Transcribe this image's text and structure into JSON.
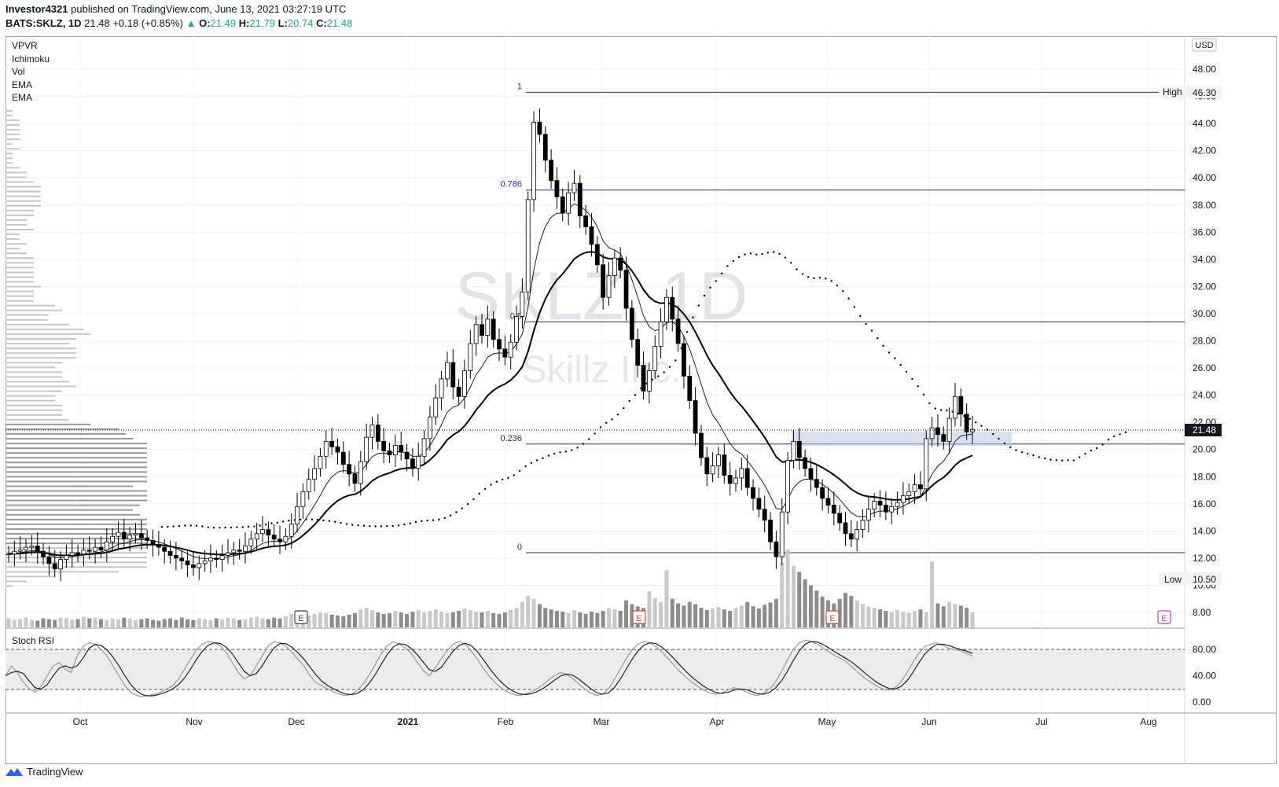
{
  "header": {
    "author": "Investor4321",
    "published": "published on TradingView.com, June 13, 2021 03:27:19 UTC",
    "symbol": "BATS:SKLZ, 1D",
    "last": "21.48",
    "change": "+0.18 (+0.85%)",
    "open_label": "O:",
    "open": "21.49",
    "high_label": "H:",
    "high": "21.79",
    "low_label": "L:",
    "low": "20.74",
    "close_label": "C:",
    "close": "21.48"
  },
  "watermark": {
    "symbol": "SKLZ, 1D",
    "name": "Skillz Inc."
  },
  "indicators": [
    "VPVR",
    "Ichimoku",
    "Vol",
    "EMA",
    "EMA"
  ],
  "stoch_label": "Stoch RSI",
  "footer": {
    "brand": "TradingView"
  },
  "colors": {
    "up": "#26a69a",
    "candle": "#000000",
    "fib": "#2a2e8c",
    "zone": "#b8c8e8",
    "earnings": "#e8453c",
    "dividend": "#c040c0"
  },
  "chart_data": {
    "type": "candlestick",
    "currency": "USD",
    "x_ticks": [
      "Oct",
      "Nov",
      "Dec",
      "2021",
      "Feb",
      "Mar",
      "Apr",
      "May",
      "Jun",
      "Jul",
      "Aug"
    ],
    "price_ticks": [
      "48.00",
      "46.00",
      "44.00",
      "42.00",
      "40.00",
      "38.00",
      "36.00",
      "34.00",
      "32.00",
      "30.00",
      "28.00",
      "26.00",
      "24.00",
      "22.00",
      "20.00",
      "18.00",
      "16.00",
      "14.00",
      "12.00",
      "10.00",
      "8.00"
    ],
    "stoch_ticks": [
      "80.00",
      "40.00",
      "0.00"
    ],
    "ylim": [
      7,
      51
    ],
    "fib_levels": [
      {
        "label": "1",
        "value": 46.3
      },
      {
        "label": "0.786",
        "value": 39.1
      },
      {
        "label": "0.5",
        "value": 29.4
      },
      {
        "label": "0.236",
        "value": 20.4
      },
      {
        "label": "0",
        "value": 12.4
      }
    ],
    "markers": {
      "high_label": "High",
      "high": "46.30",
      "low_label": "Low",
      "low": "10.50",
      "last": "21.48"
    },
    "events": {
      "earnings": "E"
    },
    "close_series": [
      12.3,
      12.5,
      12.6,
      12.8,
      12.9,
      12.5,
      12.1,
      11.6,
      11.2,
      11.9,
      12.2,
      12.4,
      12.3,
      12.6,
      12.5,
      12.8,
      12.6,
      13.2,
      13.6,
      13.9,
      13.4,
      13.7,
      13.8,
      13.5,
      13.3,
      13.0,
      12.8,
      12.5,
      12.2,
      12.0,
      11.8,
      11.5,
      11.3,
      11.6,
      11.8,
      12.0,
      11.9,
      12.2,
      12.4,
      12.6,
      12.5,
      12.9,
      13.4,
      13.8,
      14.1,
      13.7,
      13.4,
      13.2,
      13.6,
      14.5,
      15.8,
      16.9,
      17.8,
      18.6,
      19.5,
      20.6,
      20.2,
      19.8,
      18.9,
      18.2,
      17.5,
      19.1,
      20.9,
      21.8,
      20.6,
      19.9,
      19.6,
      20.3,
      19.8,
      19.3,
      18.6,
      19.5,
      20.8,
      22.4,
      23.8,
      25.2,
      26.4,
      24.6,
      23.9,
      25.8,
      27.8,
      29.2,
      28.4,
      29.6,
      28.1,
      27.4,
      26.8,
      27.9,
      29.8,
      31.6,
      38.4,
      44.1,
      43.2,
      41.3,
      39.8,
      38.6,
      37.4,
      38.9,
      39.6,
      37.2,
      36.4,
      35.1,
      33.6,
      31.2,
      32.8,
      34.1,
      33.2,
      30.4,
      28.1,
      26.2,
      24.3,
      25.8,
      27.6,
      29.4,
      31.2,
      29.6,
      27.8,
      25.4,
      23.6,
      21.2,
      19.4,
      18.2,
      18.8,
      19.6,
      18.1,
      17.5,
      17.9,
      18.6,
      17.2,
      16.4,
      15.6,
      14.8,
      13.2,
      12.1,
      15.4,
      19.2,
      20.6,
      19.4,
      18.6,
      17.8,
      17.2,
      16.4,
      15.9,
      15.3,
      14.6,
      13.8,
      13.4,
      14.1,
      14.8,
      15.6,
      16.2,
      15.9,
      15.4,
      15.8,
      16.1,
      16.6,
      16.9,
      17.4,
      17.1,
      20.8,
      21.6,
      21.1,
      20.6,
      22.3,
      23.9,
      22.6,
      21.3,
      21.48
    ],
    "volume_series": [
      1.2,
      1.0,
      1.1,
      1.3,
      1.0,
      0.9,
      1.2,
      1.1,
      1.0,
      1.3,
      1.2,
      1.0,
      1.1,
      1.4,
      1.2,
      1.3,
      1.1,
      1.0,
      1.2,
      1.1,
      1.3,
      1.2,
      1.0,
      1.1,
      1.2,
      1.0,
      0.9,
      1.1,
      1.2,
      1.0,
      1.3,
      1.1,
      1.0,
      1.2,
      1.1,
      1.0,
      1.2,
      1.1,
      1.3,
      1.2,
      1.0,
      1.1,
      1.3,
      1.4,
      1.2,
      1.1,
      1.3,
      1.2,
      1.5,
      1.8,
      2.0,
      1.7,
      1.6,
      1.8,
      2.0,
      1.9,
      1.7,
      1.6,
      1.5,
      1.7,
      1.9,
      2.4,
      2.6,
      2.3,
      2.0,
      1.8,
      1.9,
      2.2,
      2.0,
      1.8,
      2.1,
      2.3,
      2.0,
      2.2,
      2.4,
      2.1,
      1.9,
      2.0,
      2.2,
      2.5,
      2.3,
      2.1,
      2.0,
      2.2,
      1.9,
      1.8,
      2.0,
      2.3,
      2.6,
      3.4,
      4.2,
      3.8,
      3.1,
      2.6,
      2.4,
      2.2,
      2.1,
      1.9,
      2.3,
      2.0,
      1.8,
      2.1,
      1.9,
      2.2,
      2.6,
      2.4,
      2.2,
      3.6,
      3.1,
      2.8,
      2.6,
      4.8,
      3.9,
      3.4,
      7.6,
      3.8,
      3.2,
      2.9,
      3.4,
      3.1,
      2.6,
      2.3,
      2.5,
      2.7,
      2.4,
      2.2,
      2.6,
      2.9,
      3.4,
      2.8,
      2.5,
      3.0,
      3.3,
      3.8,
      8.6,
      10.4,
      8.2,
      7.4,
      6.4,
      5.6,
      4.9,
      4.1,
      3.6,
      3.2,
      3.8,
      4.6,
      4.2,
      3.6,
      3.1,
      2.8,
      2.6,
      2.4,
      2.2,
      2.0,
      2.3,
      2.1,
      1.9,
      2.2,
      2.4,
      2.0,
      8.8,
      3.2,
      2.8,
      3.4,
      3.1,
      2.9,
      2.6,
      2.0
    ],
    "stoch_k": [
      40,
      55,
      45,
      30,
      20,
      15,
      25,
      40,
      55,
      60,
      50,
      45,
      70,
      85,
      90,
      88,
      80,
      70,
      55,
      40,
      25,
      15,
      10,
      8,
      10,
      12,
      15,
      20,
      25,
      35,
      50,
      65,
      80,
      88,
      92,
      90,
      85,
      75,
      60,
      45,
      35,
      40,
      55,
      70,
      85,
      92,
      90,
      84,
      76,
      65,
      55,
      40,
      30,
      25,
      20,
      15,
      12,
      10,
      12,
      18,
      28,
      42,
      58,
      74,
      86,
      92,
      88,
      82,
      74,
      60,
      48,
      40,
      52,
      66,
      78,
      88,
      92,
      88,
      78,
      66,
      52,
      40,
      30,
      22,
      16,
      12,
      10,
      12,
      15,
      20,
      26,
      34,
      40,
      45,
      42,
      36,
      28,
      20,
      14,
      10,
      12,
      20,
      34,
      50,
      66,
      80,
      88,
      92,
      90,
      84,
      76,
      66,
      56,
      46,
      38,
      30,
      24,
      18,
      14,
      12,
      14,
      18,
      22,
      20,
      16,
      12,
      10,
      14,
      20,
      30,
      46,
      64,
      80,
      90,
      94,
      92,
      88,
      82,
      76,
      70,
      66,
      60,
      52,
      44,
      36,
      30,
      24,
      20,
      18,
      22,
      30,
      44,
      60,
      74,
      84,
      88,
      90,
      86,
      82,
      80,
      78,
      74,
      70
    ]
  }
}
